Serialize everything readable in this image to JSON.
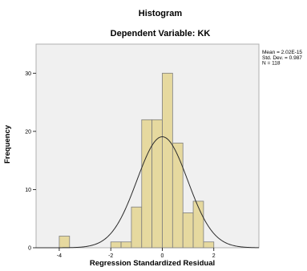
{
  "chart_data": {
    "type": "histogram",
    "title": "Histogram",
    "subtitle": "Dependent Variable: KK",
    "xlabel": "Regression Standardized Residual",
    "ylabel": "Frequency",
    "xlim": [
      -4.9,
      3.75
    ],
    "ylim": [
      0,
      35
    ],
    "x_ticks": [
      -4,
      -2,
      0,
      2
    ],
    "y_ticks": [
      0,
      10,
      20,
      30
    ],
    "bin_width": 0.4,
    "bins": [
      {
        "x0": -4.0,
        "x1": -3.6,
        "count": 2
      },
      {
        "x0": -2.0,
        "x1": -1.6,
        "count": 1
      },
      {
        "x0": -1.6,
        "x1": -1.2,
        "count": 1
      },
      {
        "x0": -1.2,
        "x1": -0.8,
        "count": 7
      },
      {
        "x0": -0.8,
        "x1": -0.4,
        "count": 22
      },
      {
        "x0": -0.4,
        "x1": 0.0,
        "count": 22
      },
      {
        "x0": 0.0,
        "x1": 0.4,
        "count": 30
      },
      {
        "x0": 0.4,
        "x1": 0.8,
        "count": 18
      },
      {
        "x0": 0.8,
        "x1": 1.2,
        "count": 6
      },
      {
        "x0": 1.2,
        "x1": 1.6,
        "count": 8
      },
      {
        "x0": 1.6,
        "x1": 2.0,
        "count": 1
      }
    ],
    "normal_curve": {
      "mean": 0,
      "sd": 0.987,
      "n": 118
    },
    "stats_box": [
      "Mean = 2.02E-15",
      "Std. Dev. = 0.987",
      "N = 118"
    ],
    "grid": false,
    "colors": {
      "bar_fill": "#e6d99f",
      "bar_edge": "#7d7d7d",
      "plot_bg": "#f0f0f0",
      "curve": "#2b2b2b",
      "frame": "#b0b0b0"
    }
  }
}
